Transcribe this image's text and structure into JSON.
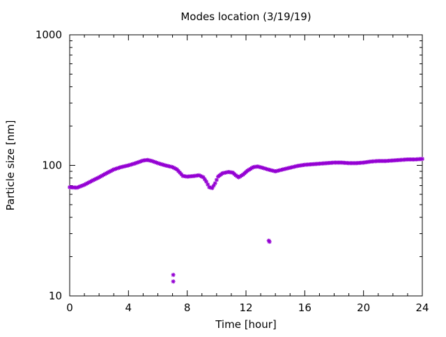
{
  "chart_data": {
    "type": "scatter",
    "title": "Modes location (3/19/19)",
    "xlabel": "Time [hour]",
    "ylabel": "Particle size [nm]",
    "xlim": [
      0,
      24
    ],
    "ylim": [
      10,
      1000
    ],
    "yscale": "log",
    "grid": false,
    "legend": "none",
    "xticks": [
      0,
      4,
      8,
      12,
      16,
      20,
      24
    ],
    "xtick_labels": [
      "0",
      "4",
      "8",
      "12",
      "16",
      "20",
      "24"
    ],
    "yticks": [
      10,
      100,
      1000
    ],
    "ytick_labels": [
      "10",
      "100",
      "1000"
    ],
    "series": [
      {
        "color": "#9400d3",
        "marker": "star",
        "points": [
          [
            0.0,
            68
          ],
          [
            0.5,
            67.5
          ],
          [
            1.0,
            71
          ],
          [
            1.5,
            76
          ],
          [
            2.0,
            81
          ],
          [
            2.5,
            87
          ],
          [
            3.0,
            93
          ],
          [
            3.5,
            97
          ],
          [
            4.0,
            100
          ],
          [
            4.5,
            104
          ],
          [
            5.0,
            109
          ],
          [
            5.3,
            110
          ],
          [
            5.6,
            108
          ],
          [
            6.0,
            104
          ],
          [
            6.5,
            100
          ],
          [
            7.0,
            97
          ],
          [
            7.3,
            93
          ],
          [
            7.5,
            88
          ],
          [
            7.7,
            83
          ],
          [
            8.0,
            82
          ],
          [
            8.5,
            83
          ],
          [
            8.8,
            84
          ],
          [
            9.1,
            81
          ],
          [
            9.3,
            75
          ],
          [
            9.5,
            68
          ],
          [
            9.7,
            67
          ],
          [
            9.9,
            73
          ],
          [
            10.1,
            82
          ],
          [
            10.4,
            87
          ],
          [
            10.8,
            89
          ],
          [
            11.1,
            88
          ],
          [
            11.3,
            84
          ],
          [
            11.5,
            81
          ],
          [
            11.8,
            85
          ],
          [
            12.1,
            91
          ],
          [
            12.5,
            97
          ],
          [
            12.8,
            98
          ],
          [
            13.1,
            96
          ],
          [
            13.5,
            93
          ],
          [
            14.0,
            90
          ],
          [
            14.5,
            93
          ],
          [
            15.0,
            96
          ],
          [
            15.5,
            99
          ],
          [
            16.0,
            101
          ],
          [
            16.5,
            102
          ],
          [
            17.0,
            103
          ],
          [
            17.5,
            104
          ],
          [
            18.0,
            105
          ],
          [
            18.5,
            105
          ],
          [
            19.0,
            104
          ],
          [
            19.5,
            104
          ],
          [
            20.0,
            105
          ],
          [
            20.5,
            107
          ],
          [
            21.0,
            108
          ],
          [
            21.5,
            108
          ],
          [
            22.0,
            109
          ],
          [
            22.5,
            110
          ],
          [
            23.0,
            111
          ],
          [
            23.5,
            111
          ],
          [
            24.0,
            112
          ],
          [
            7.05,
            14.5
          ],
          [
            7.05,
            12.9
          ],
          [
            13.55,
            26.5
          ],
          [
            13.6,
            26
          ]
        ]
      }
    ]
  }
}
